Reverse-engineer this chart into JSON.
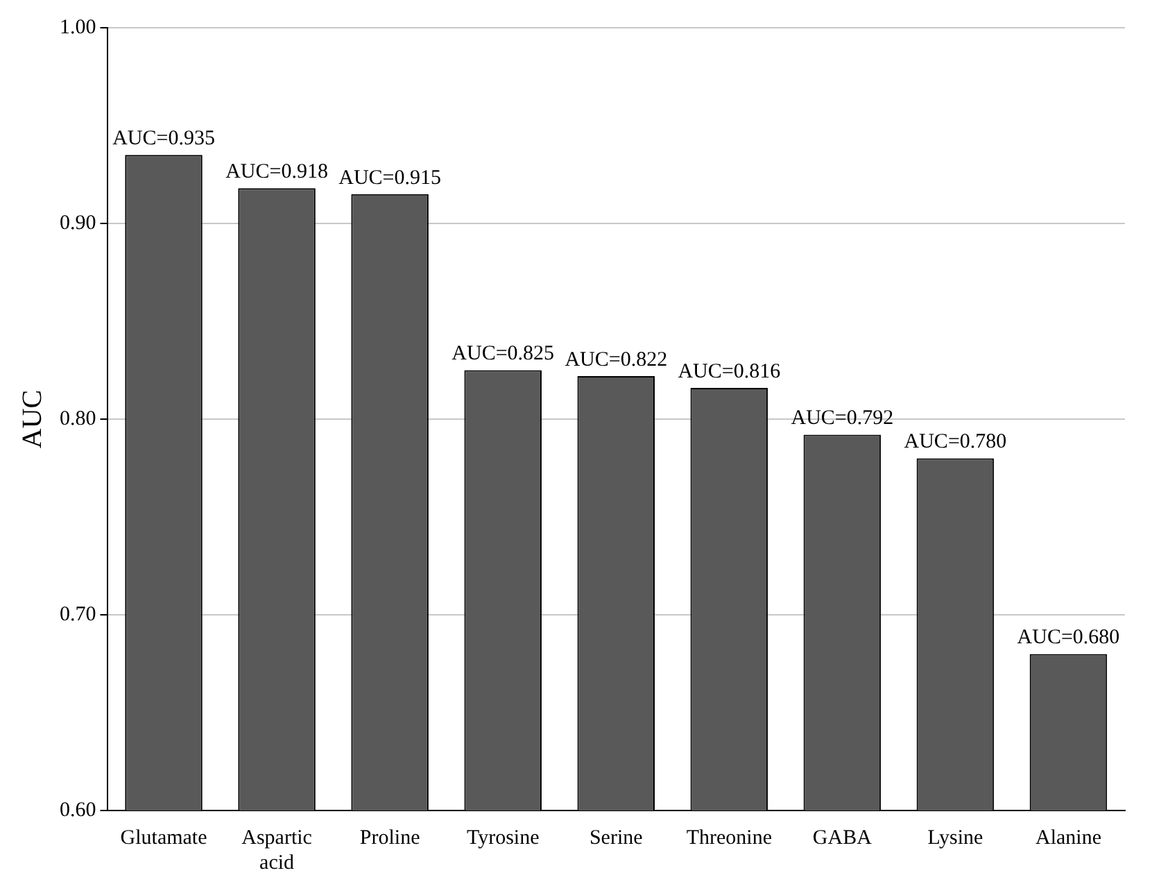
{
  "chart_data": {
    "type": "bar",
    "ylabel": "AUC",
    "categories": [
      "Glutamate",
      "Aspartic acid",
      "Proline",
      "Tyrosine",
      "Serine",
      "Threonine",
      "GABA",
      "Lysine",
      "Alanine"
    ],
    "values": [
      0.935,
      0.918,
      0.915,
      0.825,
      0.822,
      0.816,
      0.792,
      0.78,
      0.68
    ],
    "value_labels": [
      "AUC=0.935",
      "AUC=0.918",
      "AUC=0.915",
      "AUC=0.825",
      "AUC=0.822",
      "AUC=0.816",
      "AUC=0.792",
      "AUC=0.780",
      "AUC=0.680"
    ],
    "color": "#595959",
    "ylim": [
      0.6,
      1.0
    ],
    "yticks": [
      {
        "value": 0.6,
        "label": "0.60"
      },
      {
        "value": 0.7,
        "label": "0.70"
      },
      {
        "value": 0.8,
        "label": "0.80"
      },
      {
        "value": 0.9,
        "label": "0.90"
      },
      {
        "value": 1.0,
        "label": "1.00"
      }
    ],
    "grid": "y",
    "legend": false
  }
}
